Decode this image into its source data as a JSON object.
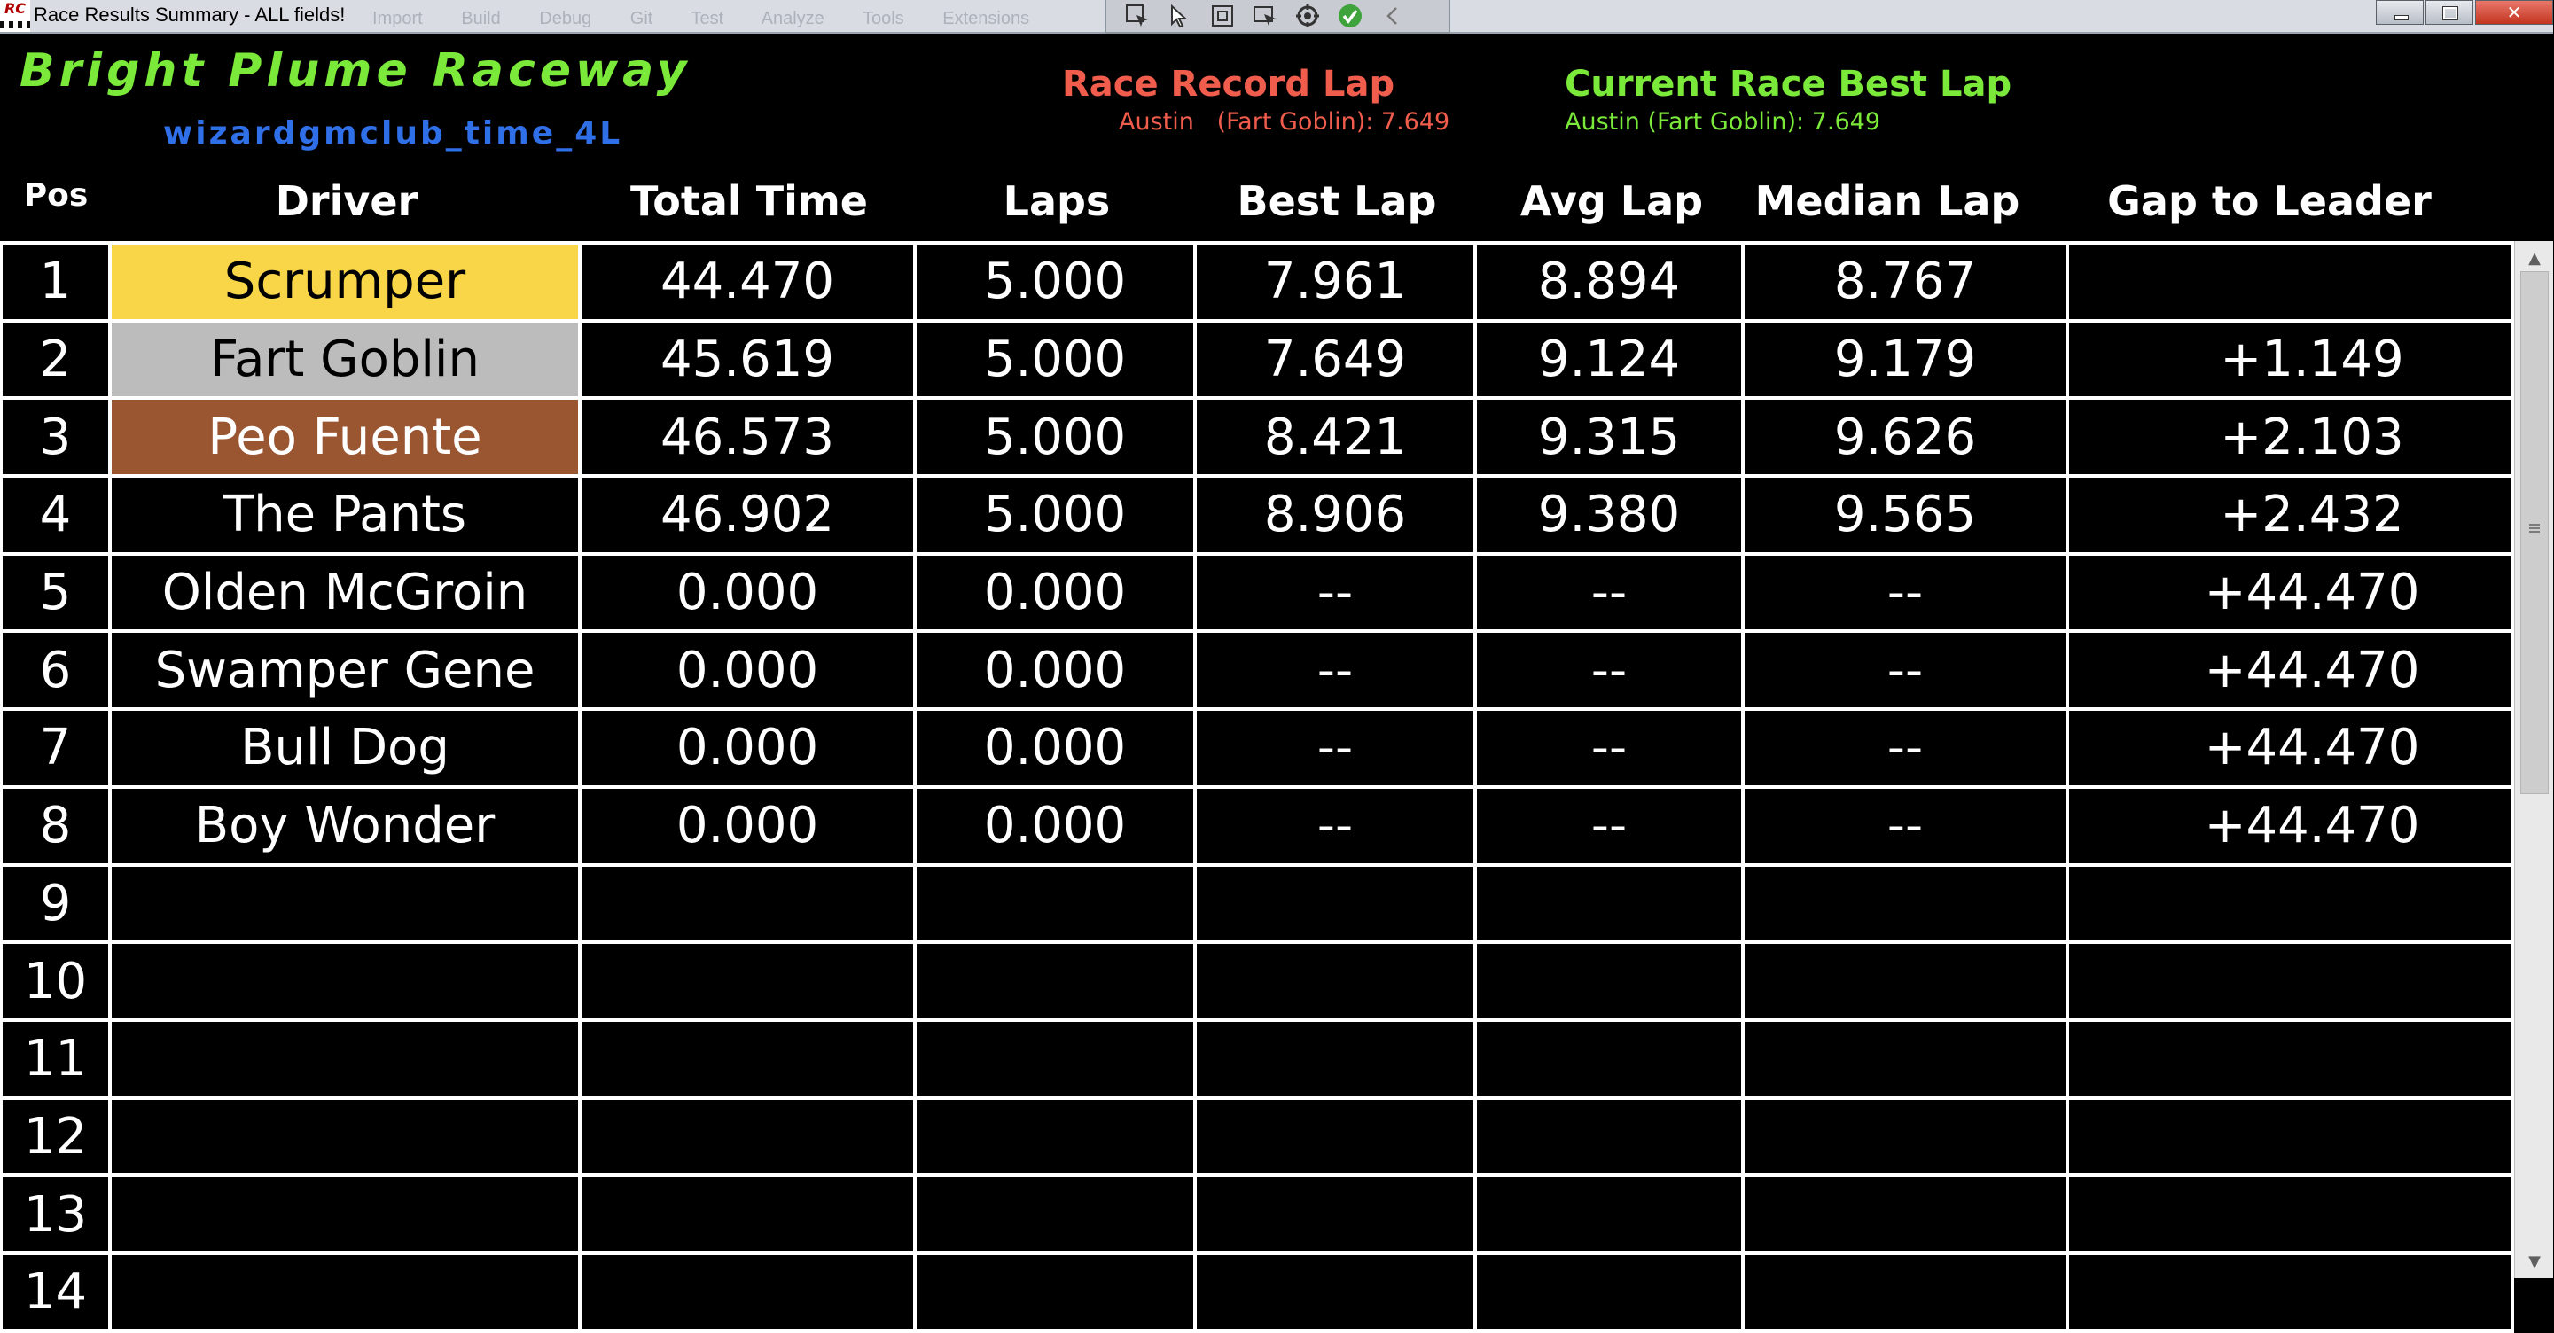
{
  "window": {
    "title": "Race Results Summary - ALL fields!",
    "ghost_menu": "Import  Build  Debug  Git  Test  Analyze  Tools  Extensions",
    "toolbar_icons": [
      "select-element-icon",
      "pointer-icon",
      "frame-icon",
      "track-focus-icon",
      "hot-reload-icon",
      "check-icon",
      "collapse-icon"
    ]
  },
  "header": {
    "track_name": "Bright Plume Raceway",
    "race_id": "wizardgmclub_time_4L",
    "record": {
      "title": "Race Record Lap",
      "detail": "Austin   (Fart Goblin): 7.649"
    },
    "best": {
      "title": "Current Race Best Lap",
      "detail": "Austin  (Fart Goblin): 7.649"
    },
    "accent_colors": {
      "track": "#7be93a",
      "race_id": "#2f6fe8",
      "record": "#f05d4c",
      "best": "#7be93a"
    }
  },
  "columns": [
    "Pos",
    "Driver",
    "Total Time",
    "Laps",
    "Best Lap",
    "Avg Lap",
    "Median Lap",
    "Gap to Leader"
  ],
  "rows": [
    {
      "pos": "1",
      "driver": "Scrumper",
      "total": "44.470",
      "laps": "5.000",
      "best": "7.961",
      "avg": "8.894",
      "median": "8.767",
      "gap": "",
      "medal": "gold"
    },
    {
      "pos": "2",
      "driver": "Fart Goblin",
      "total": "45.619",
      "laps": "5.000",
      "best": "7.649",
      "avg": "9.124",
      "median": "9.179",
      "gap": "+1.149",
      "medal": "silver"
    },
    {
      "pos": "3",
      "driver": "Peo Fuente",
      "total": "46.573",
      "laps": "5.000",
      "best": "8.421",
      "avg": "9.315",
      "median": "9.626",
      "gap": "+2.103",
      "medal": "bronze"
    },
    {
      "pos": "4",
      "driver": "The Pants",
      "total": "46.902",
      "laps": "5.000",
      "best": "8.906",
      "avg": "9.380",
      "median": "9.565",
      "gap": "+2.432",
      "medal": ""
    },
    {
      "pos": "5",
      "driver": "Olden McGroin",
      "total": "0.000",
      "laps": "0.000",
      "best": "--",
      "avg": "--",
      "median": "--",
      "gap": "+44.470",
      "medal": ""
    },
    {
      "pos": "6",
      "driver": "Swamper Gene",
      "total": "0.000",
      "laps": "0.000",
      "best": "--",
      "avg": "--",
      "median": "--",
      "gap": "+44.470",
      "medal": ""
    },
    {
      "pos": "7",
      "driver": "Bull Dog",
      "total": "0.000",
      "laps": "0.000",
      "best": "--",
      "avg": "--",
      "median": "--",
      "gap": "+44.470",
      "medal": ""
    },
    {
      "pos": "8",
      "driver": "Boy Wonder",
      "total": "0.000",
      "laps": "0.000",
      "best": "--",
      "avg": "--",
      "median": "--",
      "gap": "+44.470",
      "medal": ""
    },
    {
      "pos": "9",
      "driver": "",
      "total": "",
      "laps": "",
      "best": "",
      "avg": "",
      "median": "",
      "gap": "",
      "medal": ""
    },
    {
      "pos": "10",
      "driver": "",
      "total": "",
      "laps": "",
      "best": "",
      "avg": "",
      "median": "",
      "gap": "",
      "medal": ""
    },
    {
      "pos": "11",
      "driver": "",
      "total": "",
      "laps": "",
      "best": "",
      "avg": "",
      "median": "",
      "gap": "",
      "medal": ""
    },
    {
      "pos": "12",
      "driver": "",
      "total": "",
      "laps": "",
      "best": "",
      "avg": "",
      "median": "",
      "gap": "",
      "medal": ""
    },
    {
      "pos": "13",
      "driver": "",
      "total": "",
      "laps": "",
      "best": "",
      "avg": "",
      "median": "",
      "gap": "",
      "medal": ""
    },
    {
      "pos": "14",
      "driver": "",
      "total": "",
      "laps": "",
      "best": "",
      "avg": "",
      "median": "",
      "gap": "",
      "medal": ""
    }
  ],
  "medal_colors": {
    "gold": "#f9d548",
    "silver": "#bcbcbc",
    "bronze": "#9a5531"
  }
}
